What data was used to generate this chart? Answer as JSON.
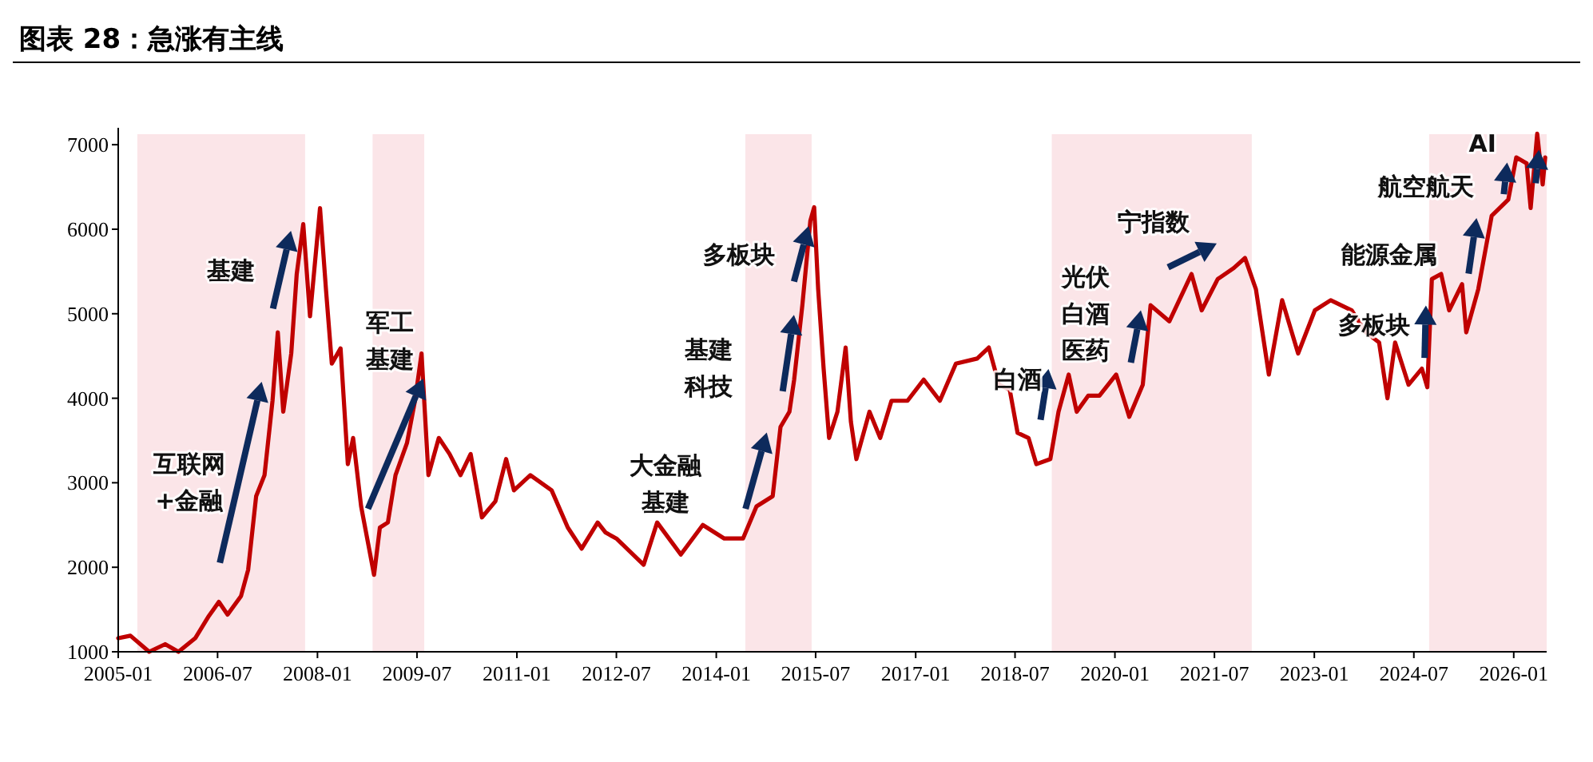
{
  "chart_data": {
    "type": "line",
    "title": "图表 28：急涨有主线",
    "x": [
      "2005-01-01",
      "2005-03-09",
      "2005-06-20",
      "2005-09-16",
      "2005-11-28",
      "2006-02-28",
      "2006-05-10",
      "2006-07-08",
      "2006-08-25",
      "2006-11-07",
      "2006-12-16",
      "2007-01-29",
      "2007-03-16",
      "2007-04-29",
      "2007-05-28",
      "2007-06-27",
      "2007-08-10",
      "2007-09-09",
      "2007-10-15",
      "2007-11-21",
      "2008-01-15",
      "2008-02-17",
      "2008-03-20",
      "2008-05-07",
      "2008-06-16",
      "2008-07-15",
      "2008-08-28",
      "2008-10-11",
      "2008-11-07",
      "2008-12-09",
      "2009-01-22",
      "2009-03-05",
      "2009-05-07",
      "2009-06-20",
      "2009-07-26",
      "2009-09-02",
      "2009-10-29",
      "2009-12-27",
      "2010-02-25",
      "2010-04-22",
      "2010-06-23",
      "2010-09-05",
      "2010-11-03",
      "2010-12-16",
      "2011-03-16",
      "2011-07-11",
      "2011-10-08",
      "2011-12-23",
      "2012-03-20",
      "2012-05-03",
      "2012-07-01",
      "2012-11-28",
      "2013-02-10",
      "2013-06-20",
      "2013-10-19",
      "2014-02-14",
      "2014-05-28",
      "2014-08-10",
      "2014-11-07",
      "2014-12-20",
      "2015-02-07",
      "2015-03-05",
      "2015-04-19",
      "2015-06-02",
      "2015-06-23",
      "2015-07-15",
      "2015-08-14",
      "2015-09-13",
      "2015-10-29",
      "2015-12-13",
      "2016-01-11",
      "2016-02-10",
      "2016-04-22",
      "2016-06-20",
      "2016-08-21",
      "2016-11-17",
      "2017-02-14",
      "2017-05-14",
      "2017-08-10",
      "2017-12-05",
      "2018-02-07",
      "2018-04-04",
      "2018-06-02",
      "2018-07-15",
      "2018-09-13",
      "2018-10-26",
      "2019-01-11",
      "2019-02-25",
      "2019-04-22",
      "2019-06-05",
      "2019-08-07",
      "2019-10-08",
      "2020-01-08",
      "2020-03-20",
      "2020-06-02",
      "2020-07-15",
      "2020-10-26",
      "2021-02-25",
      "2021-04-22",
      "2021-07-19",
      "2021-10-15",
      "2021-12-16",
      "2022-02-14",
      "2022-04-26",
      "2022-07-08",
      "2022-10-04",
      "2023-01-04",
      "2023-04-01",
      "2023-07-26",
      "2023-10-11",
      "2023-12-23",
      "2024-02-07",
      "2024-03-20",
      "2024-06-02",
      "2024-08-14",
      "2024-09-13",
      "2024-10-08",
      "2024-11-28",
      "2025-01-11",
      "2025-03-23",
      "2025-04-15",
      "2025-06-20",
      "2025-09-02",
      "2025-12-02",
      "2026-01-15",
      "2026-03-13",
      "2026-04-04",
      "2026-05-10",
      "2026-06-09",
      "2026-06-23"
    ],
    "series": [
      {
        "color": "#c00000",
        "values": [
          1160,
          1190,
          1000,
          1090,
          1000,
          1160,
          1410,
          1590,
          1440,
          1660,
          1970,
          2840,
          3090,
          3970,
          4780,
          3840,
          4530,
          5470,
          6060,
          4970,
          6250,
          5280,
          4410,
          4590,
          3220,
          3530,
          2720,
          2220,
          1910,
          2470,
          2530,
          3090,
          3470,
          3970,
          4530,
          3090,
          3530,
          3340,
          3090,
          3340,
          2590,
          2780,
          3280,
          2910,
          3090,
          2910,
          2470,
          2220,
          2530,
          2410,
          2340,
          2030,
          2530,
          2150,
          2500,
          2340,
          2340,
          2720,
          2840,
          3660,
          3840,
          4220,
          5100,
          6100,
          6260,
          5290,
          4350,
          3530,
          3840,
          4600,
          3720,
          3280,
          3840,
          3530,
          3970,
          3970,
          4220,
          3970,
          4410,
          4470,
          4600,
          4160,
          4100,
          3590,
          3530,
          3220,
          3280,
          3840,
          4280,
          3840,
          4030,
          4030,
          4280,
          3780,
          4160,
          5100,
          4910,
          5470,
          5040,
          5410,
          5540,
          5660,
          5290,
          4280,
          5160,
          4530,
          5040,
          5160,
          5040,
          4780,
          4660,
          4000,
          4660,
          4160,
          4350,
          4130,
          5410,
          5470,
          5040,
          5350,
          4780,
          5290,
          6160,
          6350,
          6850,
          6780,
          6250,
          7130,
          6530,
          6850
        ]
      }
    ],
    "xlim": [
      "2005-01-01",
      "2026-07-01"
    ],
    "xticks": [
      "2005-01",
      "2006-07",
      "2008-01",
      "2009-07",
      "2011-01",
      "2012-07",
      "2014-01",
      "2015-07",
      "2017-01",
      "2018-07",
      "2020-01",
      "2021-07",
      "2023-01",
      "2024-07",
      "2026-01"
    ],
    "ylim": [
      1000,
      7200
    ],
    "yticks": [
      1000,
      2000,
      3000,
      4000,
      5000,
      6000,
      7000
    ],
    "grid": false,
    "bands": [
      {
        "axis": "x",
        "from": "2005-04-16",
        "to": "2007-10-25",
        "color": "#fbe5e8"
      },
      {
        "axis": "x",
        "from": "2008-10-30",
        "to": "2009-08-10",
        "color": "#fbe5e8"
      },
      {
        "axis": "x",
        "from": "2014-06-10",
        "to": "2015-06-09",
        "color": "#fbe5e8"
      },
      {
        "axis": "x",
        "from": "2019-01-19",
        "to": "2022-01-22",
        "color": "#fbe5e8"
      },
      {
        "axis": "x",
        "from": "2024-09-23",
        "to": "2026-07-01",
        "color": "#fbe5e8"
      }
    ],
    "annotations": [
      "互联网+金融",
      "基建",
      {
        "text": "军工基建",
        "x": "2009-07-26",
        "y": 4530
      },
      "大金融基建",
      "基建科技",
      "多板块",
      "白酒",
      "光伏白酒医药",
      "宁指数",
      "能源金属",
      "多板块",
      "航空航天",
      "AI"
    ]
  }
}
